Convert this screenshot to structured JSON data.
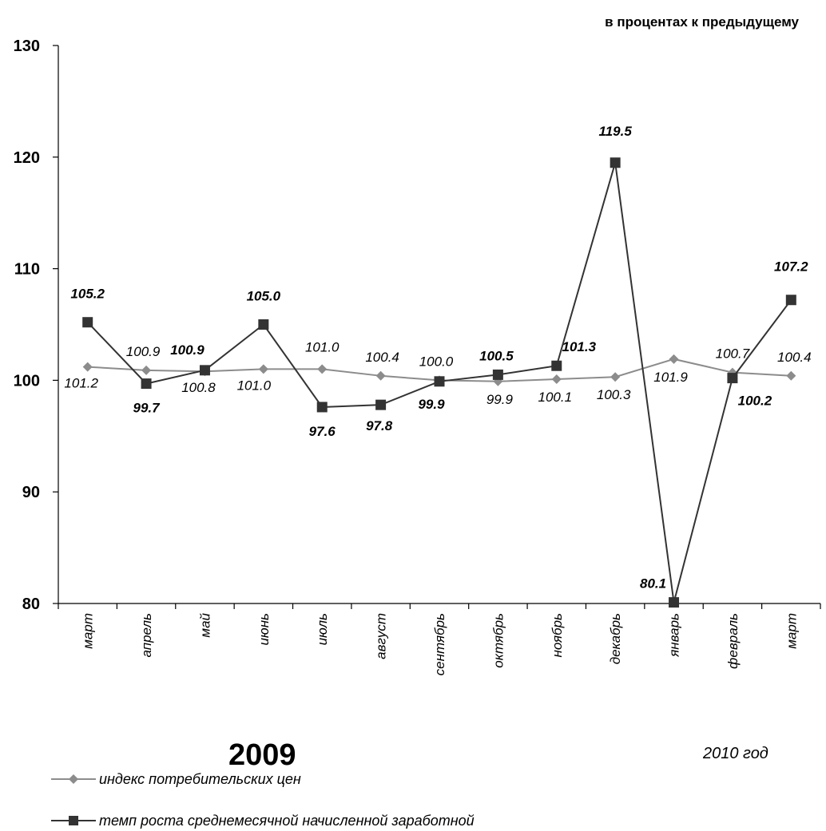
{
  "header": {
    "unit_note": "в процентах к предыдущему"
  },
  "footer": {
    "year_2009": "2009",
    "year_2010": "2010 год"
  },
  "legend": {
    "items": [
      {
        "label": "индекс потребительских цен",
        "color": "#8c8c8c",
        "marker": "diamond"
      },
      {
        "label": "темп роста среднемесячной начисленной заработной",
        "color": "#333333",
        "marker": "square"
      }
    ]
  },
  "chart_data": {
    "type": "line",
    "categories": [
      "март",
      "апрель",
      "май",
      "июнь",
      "июль",
      "август",
      "сентябрь",
      "октябрь",
      "ноябрь",
      "декабрь",
      "январь",
      "февраль",
      "март"
    ],
    "ylim": [
      80,
      130
    ],
    "yticks": [
      "80",
      "90",
      "100",
      "110",
      "120",
      "130"
    ],
    "series": [
      {
        "name": "индекс потребительских цен",
        "values": [
          101.2,
          100.9,
          100.8,
          101.0,
          101.0,
          100.4,
          100.0,
          99.9,
          100.1,
          100.3,
          101.9,
          100.7,
          100.4
        ],
        "labels": [
          "101.2",
          "100.9",
          "100.8",
          "101.0",
          "101.0",
          "100.4",
          "100.0",
          "99.9",
          "100.1",
          "100.3",
          "101.9",
          "100.7",
          "100.4"
        ],
        "color": "#8c8c8c"
      },
      {
        "name": "темп роста среднемесячной начисленной заработной",
        "values": [
          105.2,
          99.7,
          100.9,
          105.0,
          97.6,
          97.8,
          99.9,
          100.5,
          101.3,
          119.5,
          80.1,
          100.2,
          107.2
        ],
        "labels": [
          "105.2",
          "99.7",
          "100.9",
          "105.0",
          "97.6",
          "97.8",
          "99.9",
          "100.5",
          "101.3",
          "119.5",
          "80.1",
          "100.2",
          "107.2"
        ],
        "color": "#333333"
      }
    ],
    "grid": false,
    "legend_position": "bottom-left"
  }
}
